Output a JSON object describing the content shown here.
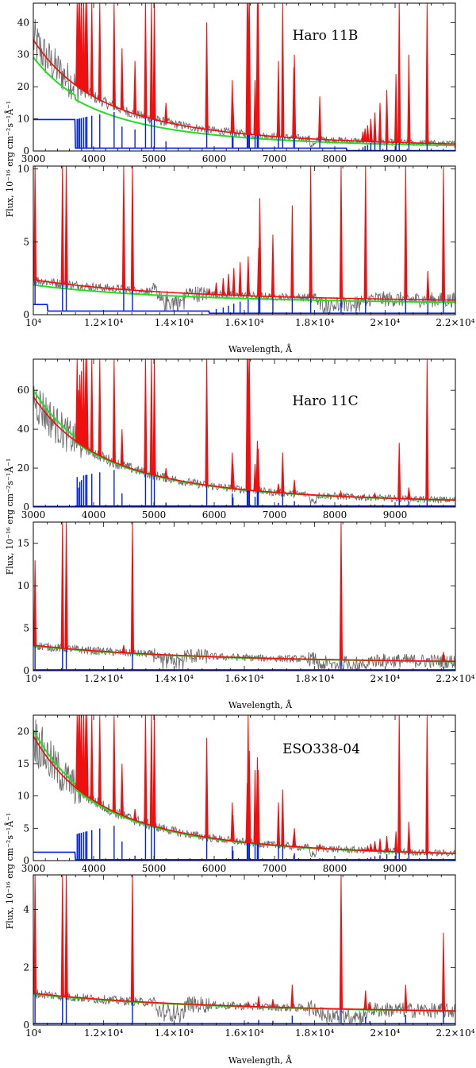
{
  "figure": {
    "groups": [
      {
        "id": "haro11b",
        "title": "Haro 11B",
        "ylabel": "Flux, 10⁻¹⁶ erg cm⁻²s⁻¹Å⁻¹",
        "xlabel": "Wavelength, Å"
      },
      {
        "id": "haro11c",
        "title": "Haro 11C",
        "ylabel": "Flux, 10⁻¹⁶ erg cm⁻²s⁻¹Å⁻¹",
        "xlabel": "Wavelength, Å"
      },
      {
        "id": "eso338",
        "title": "ESO338-04",
        "ylabel": "Flux, 10⁻¹⁶ erg cm⁻²s⁻¹Å⁻¹",
        "xlabel": "Wavelength, Å"
      }
    ]
  },
  "chart_data": [
    {
      "id": "haro11b-optical",
      "group": 0,
      "band": "optical",
      "type": "line",
      "title": "Haro 11B",
      "xlabel": "",
      "ylabel": "",
      "xlim": [
        3000,
        10000
      ],
      "ylim": [
        0,
        46
      ],
      "xticks": [
        "3000",
        "4000",
        "5000",
        "6000",
        "7000",
        "8000",
        "9000"
      ],
      "xtick_values": [
        3000,
        4000,
        5000,
        6000,
        7000,
        8000,
        9000
      ],
      "yticks": [
        "0",
        "10",
        "20",
        "30",
        "40"
      ],
      "ytick_values": [
        0,
        10,
        20,
        30,
        40
      ],
      "continuum": {
        "model": "power",
        "a": 34,
        "x0": 3000,
        "p": 2.55,
        "b": 0.6
      },
      "green_scale": 0.78,
      "blue": {
        "base": 9.8,
        "step_x": 3700,
        "after": 0.9,
        "edges": [
          [
            8200,
            0.1
          ]
        ]
      },
      "balmer_edge": 3700,
      "emission_lines": [
        {
          "x": 3727,
          "peak": 46
        },
        {
          "x": 3750,
          "peak": 46
        },
        {
          "x": 3771,
          "peak": 46
        },
        {
          "x": 3798,
          "peak": 46
        },
        {
          "x": 3835,
          "peak": 46
        },
        {
          "x": 3869,
          "peak": 46
        },
        {
          "x": 3889,
          "peak": 46
        },
        {
          "x": 3970,
          "peak": 46
        },
        {
          "x": 4102,
          "peak": 46
        },
        {
          "x": 4340,
          "peak": 46
        },
        {
          "x": 4471,
          "peak": 32
        },
        {
          "x": 4686,
          "peak": 28
        },
        {
          "x": 4861,
          "peak": 46
        },
        {
          "x": 4959,
          "peak": 46
        },
        {
          "x": 5007,
          "peak": 46
        },
        {
          "x": 5200,
          "peak": 15
        },
        {
          "x": 5876,
          "peak": 40
        },
        {
          "x": 6300,
          "peak": 22
        },
        {
          "x": 6312,
          "peak": 15
        },
        {
          "x": 6548,
          "peak": 46
        },
        {
          "x": 6563,
          "peak": 46
        },
        {
          "x": 6583,
          "peak": 46
        },
        {
          "x": 6678,
          "peak": 22
        },
        {
          "x": 6716,
          "peak": 46
        },
        {
          "x": 6731,
          "peak": 46
        },
        {
          "x": 7065,
          "peak": 28
        },
        {
          "x": 7136,
          "peak": 46
        },
        {
          "x": 7320,
          "peak": 26
        },
        {
          "x": 7330,
          "peak": 30
        },
        {
          "x": 7751,
          "peak": 17
        },
        {
          "x": 8467,
          "peak": 6
        },
        {
          "x": 8502,
          "peak": 7
        },
        {
          "x": 8545,
          "peak": 8
        },
        {
          "x": 8598,
          "peak": 10
        },
        {
          "x": 8665,
          "peak": 12
        },
        {
          "x": 8750,
          "peak": 15
        },
        {
          "x": 8863,
          "peak": 19
        },
        {
          "x": 9015,
          "peak": 24
        },
        {
          "x": 9069,
          "peak": 46
        },
        {
          "x": 9229,
          "peak": 30
        },
        {
          "x": 9531,
          "peak": 46
        }
      ]
    },
    {
      "id": "haro11b-nir",
      "group": 0,
      "band": "nir",
      "type": "line",
      "title": "",
      "xlabel": "Wavelength, Å",
      "ylabel": "",
      "xlim": [
        10000,
        22000
      ],
      "ylim": [
        0,
        10.2
      ],
      "xticks": [
        "10⁴",
        "1.2×10⁴",
        "1.4×10⁴",
        "1.6×10⁴",
        "1.8×10⁴",
        "2×10⁴",
        "2.2×10⁴"
      ],
      "xtick_values": [
        10000,
        12000,
        14000,
        16000,
        18000,
        20000,
        22000
      ],
      "yticks": [
        "0",
        "5",
        "10"
      ],
      "ytick_values": [
        0,
        5,
        10
      ],
      "continuum": {
        "model": "power",
        "a": 1.7,
        "x0": 10000,
        "p": 2.2,
        "b": 0.7
      },
      "green_scale": 0.85,
      "blue": {
        "base": 0.7,
        "step_x": 10400,
        "after": 0.25,
        "edges": [
          [
            15000,
            0.1
          ]
        ]
      },
      "balmer_edge": 0,
      "emission_lines": [
        {
          "x": 10049,
          "peak": 10.2
        },
        {
          "x": 10830,
          "peak": 10.2
        },
        {
          "x": 10938,
          "peak": 10.2
        },
        {
          "x": 12570,
          "peak": 10.2
        },
        {
          "x": 12818,
          "peak": 10.2
        },
        {
          "x": 15000,
          "peak": 1.8
        },
        {
          "x": 15200,
          "peak": 2.2
        },
        {
          "x": 15400,
          "peak": 2.5
        },
        {
          "x": 15550,
          "peak": 2.8
        },
        {
          "x": 15700,
          "peak": 3.2
        },
        {
          "x": 15880,
          "peak": 3.6
        },
        {
          "x": 16109,
          "peak": 4.0
        },
        {
          "x": 16407,
          "peak": 4.6
        },
        {
          "x": 16440,
          "peak": 8.0
        },
        {
          "x": 16811,
          "peak": 5.5
        },
        {
          "x": 17362,
          "peak": 7.5
        },
        {
          "x": 18751,
          "peak": 10.2
        },
        {
          "x": 19446,
          "peak": 10.2
        },
        {
          "x": 20587,
          "peak": 10.2
        },
        {
          "x": 21218,
          "peak": 3.0
        },
        {
          "x": 21661,
          "peak": 10.2
        },
        {
          "x": 17887,
          "peak": 10.2
        }
      ]
    },
    {
      "id": "haro11c-optical",
      "group": 1,
      "band": "optical",
      "type": "line",
      "title": "Haro 11C",
      "xlabel": "",
      "ylabel": "",
      "xlim": [
        3000,
        10000
      ],
      "ylim": [
        0,
        76
      ],
      "xticks": [
        "3000",
        "4000",
        "5000",
        "6000",
        "7000",
        "8000",
        "9000"
      ],
      "xtick_values": [
        3000,
        4000,
        5000,
        6000,
        7000,
        8000,
        9000
      ],
      "yticks": [
        "0",
        "20",
        "40",
        "60"
      ],
      "ytick_values": [
        0,
        20,
        40,
        60
      ],
      "continuum": {
        "model": "power",
        "a": 56,
        "x0": 3000,
        "p": 2.5,
        "b": 0.8
      },
      "green_scale": 0.98,
      "blue": {
        "base": 0.3,
        "step_x": 3700,
        "after": 0.5,
        "edges": []
      },
      "balmer_edge": 3700,
      "emission_lines": [
        {
          "x": 3727,
          "peak": 76
        },
        {
          "x": 3750,
          "peak": 60
        },
        {
          "x": 3771,
          "peak": 68
        },
        {
          "x": 3798,
          "peak": 70
        },
        {
          "x": 3835,
          "peak": 76
        },
        {
          "x": 3869,
          "peak": 76
        },
        {
          "x": 3889,
          "peak": 76
        },
        {
          "x": 3970,
          "peak": 76
        },
        {
          "x": 4102,
          "peak": 76
        },
        {
          "x": 4340,
          "peak": 76
        },
        {
          "x": 4471,
          "peak": 40
        },
        {
          "x": 4861,
          "peak": 76
        },
        {
          "x": 4959,
          "peak": 76
        },
        {
          "x": 5007,
          "peak": 76
        },
        {
          "x": 5200,
          "peak": 20
        },
        {
          "x": 5876,
          "peak": 76
        },
        {
          "x": 6300,
          "peak": 28
        },
        {
          "x": 6312,
          "peak": 22
        },
        {
          "x": 6548,
          "peak": 76
        },
        {
          "x": 6563,
          "peak": 76
        },
        {
          "x": 6583,
          "peak": 76
        },
        {
          "x": 6678,
          "peak": 22
        },
        {
          "x": 6716,
          "peak": 34
        },
        {
          "x": 6731,
          "peak": 30
        },
        {
          "x": 7065,
          "peak": 12
        },
        {
          "x": 7136,
          "peak": 28
        },
        {
          "x": 7330,
          "peak": 14
        },
        {
          "x": 8100,
          "peak": 8
        },
        {
          "x": 8467,
          "peak": 6
        },
        {
          "x": 8665,
          "peak": 7
        },
        {
          "x": 9069,
          "peak": 33
        },
        {
          "x": 9229,
          "peak": 10
        },
        {
          "x": 9531,
          "peak": 76
        }
      ]
    },
    {
      "id": "haro11c-nir",
      "group": 1,
      "band": "nir",
      "type": "line",
      "title": "",
      "xlabel": "Wavelength, Å",
      "ylabel": "",
      "xlim": [
        10000,
        22000
      ],
      "ylim": [
        0,
        17.5
      ],
      "xticks": [
        "10⁴",
        "1.2×10⁴",
        "1.4×10⁴",
        "1.6×10⁴",
        "1.8×10⁴",
        "2×10⁴",
        "2.2×10⁴"
      ],
      "xtick_values": [
        10000,
        12000,
        14000,
        16000,
        18000,
        20000,
        22000
      ],
      "yticks": [
        "0",
        "5",
        "10",
        "15"
      ],
      "ytick_values": [
        0,
        5,
        10,
        15
      ],
      "continuum": {
        "model": "power",
        "a": 2.4,
        "x0": 10000,
        "p": 2.0,
        "b": 0.6
      },
      "green_scale": 0.98,
      "blue": {
        "base": 0.2,
        "step_x": 10000,
        "after": 0.1,
        "edges": []
      },
      "balmer_edge": 0,
      "emission_lines": [
        {
          "x": 10049,
          "peak": 13
        },
        {
          "x": 10830,
          "peak": 17.5
        },
        {
          "x": 10938,
          "peak": 17.5
        },
        {
          "x": 12570,
          "peak": 3.0
        },
        {
          "x": 12818,
          "peak": 17.5
        },
        {
          "x": 16407,
          "peak": 1.5
        },
        {
          "x": 17362,
          "peak": 1.2
        },
        {
          "x": 18751,
          "peak": 17.5
        },
        {
          "x": 21661,
          "peak": 2.2
        }
      ]
    },
    {
      "id": "eso338-optical",
      "group": 2,
      "band": "optical",
      "type": "line",
      "title": "ESO338-04",
      "xlabel": "",
      "ylabel": "",
      "xlim": [
        3000,
        10000
      ],
      "ylim": [
        0,
        22.5
      ],
      "xticks": [
        "3000",
        "4000",
        "5000",
        "6000",
        "7000",
        "8000",
        "9000"
      ],
      "xtick_values": [
        3000,
        4000,
        5000,
        6000,
        7000,
        8000,
        9000
      ],
      "yticks": [
        "0",
        "5",
        "10",
        "15",
        "20"
      ],
      "ytick_values": [
        0,
        5,
        10,
        15,
        20
      ],
      "continuum": {
        "model": "power",
        "a": 19,
        "x0": 3000,
        "p": 2.6,
        "b": 0.3
      },
      "green_scale": 0.97,
      "blue": {
        "base": 1.3,
        "step_x": 3700,
        "after": 0.15,
        "edges": []
      },
      "balmer_edge": 3700,
      "emission_lines": [
        {
          "x": 3727,
          "peak": 22.5
        },
        {
          "x": 3750,
          "peak": 22.5
        },
        {
          "x": 3771,
          "peak": 22.5
        },
        {
          "x": 3798,
          "peak": 22.5
        },
        {
          "x": 3835,
          "peak": 22.5
        },
        {
          "x": 3869,
          "peak": 22.5
        },
        {
          "x": 3889,
          "peak": 22.5
        },
        {
          "x": 3970,
          "peak": 22.5
        },
        {
          "x": 4102,
          "peak": 22.5
        },
        {
          "x": 4340,
          "peak": 22.5
        },
        {
          "x": 4471,
          "peak": 15
        },
        {
          "x": 4686,
          "peak": 8
        },
        {
          "x": 4861,
          "peak": 22.5
        },
        {
          "x": 4959,
          "peak": 22.5
        },
        {
          "x": 5007,
          "peak": 22.5
        },
        {
          "x": 5876,
          "peak": 19
        },
        {
          "x": 6300,
          "peak": 9
        },
        {
          "x": 6312,
          "peak": 7
        },
        {
          "x": 6548,
          "peak": 12
        },
        {
          "x": 6563,
          "peak": 22.5
        },
        {
          "x": 6583,
          "peak": 17
        },
        {
          "x": 6678,
          "peak": 14
        },
        {
          "x": 6716,
          "peak": 16
        },
        {
          "x": 6731,
          "peak": 14
        },
        {
          "x": 7065,
          "peak": 9
        },
        {
          "x": 7136,
          "peak": 11
        },
        {
          "x": 7320,
          "peak": 4
        },
        {
          "x": 7330,
          "peak": 5
        },
        {
          "x": 7751,
          "peak": 2.5
        },
        {
          "x": 8467,
          "peak": 1.8
        },
        {
          "x": 8545,
          "peak": 2.2
        },
        {
          "x": 8598,
          "peak": 2.6
        },
        {
          "x": 8665,
          "peak": 3.0
        },
        {
          "x": 8750,
          "peak": 3.4
        },
        {
          "x": 8863,
          "peak": 3.8
        },
        {
          "x": 9015,
          "peak": 4.5
        },
        {
          "x": 9069,
          "peak": 22.5
        },
        {
          "x": 9229,
          "peak": 6
        },
        {
          "x": 9531,
          "peak": 22.5
        }
      ]
    },
    {
      "id": "eso338-nir",
      "group": 2,
      "band": "nir",
      "type": "line",
      "title": "",
      "xlabel": "Wavelength, Å",
      "ylabel": "",
      "xlim": [
        10000,
        22000
      ],
      "ylim": [
        0,
        5.2
      ],
      "xticks": [
        "10⁴",
        "1.2×10⁴",
        "1.4×10⁴",
        "1.6×10⁴",
        "1.8×10⁴",
        "2×10⁴",
        "2.2×10⁴"
      ],
      "xtick_values": [
        10000,
        12000,
        14000,
        16000,
        18000,
        20000,
        22000
      ],
      "yticks": [
        "0",
        "2",
        "4"
      ],
      "ytick_values": [
        0,
        2,
        4
      ],
      "continuum": {
        "model": "power",
        "a": 0.85,
        "x0": 10000,
        "p": 1.6,
        "b": 0.25
      },
      "green_scale": 0.98,
      "blue": {
        "base": 0.12,
        "step_x": 10000,
        "after": 0.05,
        "edges": []
      },
      "balmer_edge": 0,
      "emission_lines": [
        {
          "x": 10049,
          "peak": 5.2
        },
        {
          "x": 10830,
          "peak": 5.2
        },
        {
          "x": 10938,
          "peak": 5.2
        },
        {
          "x": 12818,
          "peak": 5.2
        },
        {
          "x": 15900,
          "peak": 0.7
        },
        {
          "x": 16109,
          "peak": 0.8
        },
        {
          "x": 16407,
          "peak": 1.0
        },
        {
          "x": 16811,
          "peak": 0.9
        },
        {
          "x": 17362,
          "peak": 1.4
        },
        {
          "x": 18751,
          "peak": 5.2
        },
        {
          "x": 19446,
          "peak": 1.2
        },
        {
          "x": 19570,
          "peak": 0.8
        },
        {
          "x": 20587,
          "peak": 1.4
        },
        {
          "x": 21661,
          "peak": 3.2
        }
      ]
    }
  ]
}
